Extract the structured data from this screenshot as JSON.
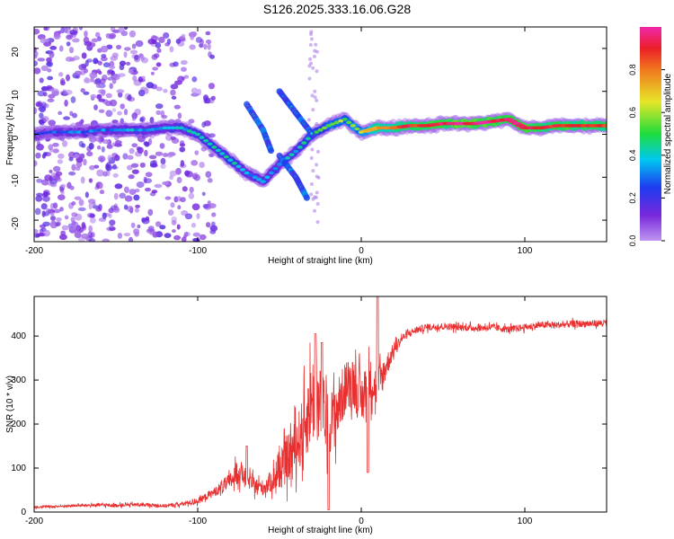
{
  "title": "S126.2025.333.16.06.G28",
  "chart_data": [
    {
      "type": "heatmap",
      "xlabel": "Height of straight line (km)",
      "ylabel": "Frequency (Hz)",
      "xlim": [
        -200,
        150
      ],
      "ylim": [
        -25,
        25
      ],
      "x_ticks": [
        -200,
        -100,
        0,
        100
      ],
      "y_ticks": [
        -20,
        -10,
        0,
        10,
        20
      ],
      "colorbar": {
        "label": "Normalized spectral amplitude",
        "range": [
          0,
          1
        ],
        "ticks": [
          0.0,
          0.2,
          0.4,
          0.6,
          0.8
        ],
        "colormap": "rainbow (violet-blue-cyan-green-yellow-red-magenta)"
      },
      "ridge": [
        {
          "x": -200,
          "f": 0,
          "amp": 0.22
        },
        {
          "x": -190,
          "f": 0.5,
          "amp": 0.25
        },
        {
          "x": -180,
          "f": 0.5,
          "amp": 0.28
        },
        {
          "x": -170,
          "f": 0.5,
          "amp": 0.3
        },
        {
          "x": -160,
          "f": 1,
          "amp": 0.3
        },
        {
          "x": -150,
          "f": 1,
          "amp": 0.32
        },
        {
          "x": -140,
          "f": 1,
          "amp": 0.34
        },
        {
          "x": -130,
          "f": 1,
          "amp": 0.35
        },
        {
          "x": -120,
          "f": 1.5,
          "amp": 0.36
        },
        {
          "x": -110,
          "f": 1.5,
          "amp": 0.38
        },
        {
          "x": -100,
          "f": 0,
          "amp": 0.42
        },
        {
          "x": -90,
          "f": -3,
          "amp": 0.42
        },
        {
          "x": -80,
          "f": -6,
          "amp": 0.42
        },
        {
          "x": -70,
          "f": -9,
          "amp": 0.38
        },
        {
          "x": -60,
          "f": -11,
          "amp": 0.34
        },
        {
          "x": -50,
          "f": -7,
          "amp": 0.36
        },
        {
          "x": -40,
          "f": -4,
          "amp": 0.42
        },
        {
          "x": -30,
          "f": 0,
          "amp": 0.48
        },
        {
          "x": -20,
          "f": 2,
          "amp": 0.55
        },
        {
          "x": -10,
          "f": 3.5,
          "amp": 0.6
        },
        {
          "x": 0,
          "f": 0.5,
          "amp": 0.62
        },
        {
          "x": 10,
          "f": 1.5,
          "amp": 0.8
        },
        {
          "x": 20,
          "f": 1.5,
          "amp": 0.82
        },
        {
          "x": 30,
          "f": 2,
          "amp": 0.88
        },
        {
          "x": 40,
          "f": 2,
          "amp": 0.9
        },
        {
          "x": 50,
          "f": 2.5,
          "amp": 0.93
        },
        {
          "x": 60,
          "f": 2.5,
          "amp": 0.98
        },
        {
          "x": 70,
          "f": 2.5,
          "amp": 0.95
        },
        {
          "x": 80,
          "f": 3,
          "amp": 0.95
        },
        {
          "x": 90,
          "f": 3.5,
          "amp": 0.92
        },
        {
          "x": 100,
          "f": 1.5,
          "amp": 0.95
        },
        {
          "x": 110,
          "f": 1.5,
          "amp": 0.88
        },
        {
          "x": 120,
          "f": 2,
          "amp": 0.9
        },
        {
          "x": 130,
          "f": 2,
          "amp": 0.88
        },
        {
          "x": 140,
          "f": 2,
          "amp": 0.9
        },
        {
          "x": 150,
          "f": 2,
          "amp": 0.9
        }
      ],
      "branches": [
        [
          {
            "x": -70,
            "f": 7
          },
          {
            "x": -60,
            "f": 1
          },
          {
            "x": -55,
            "f": -4
          }
        ],
        [
          {
            "x": -50,
            "f": 10
          },
          {
            "x": -40,
            "f": 5
          },
          {
            "x": -30,
            "f": 0
          }
        ],
        [
          {
            "x": -50,
            "f": -5
          },
          {
            "x": -40,
            "f": -10
          },
          {
            "x": -33,
            "f": -15
          }
        ]
      ],
      "noise_region": {
        "x": [
          -200,
          -100
        ],
        "f": [
          -25,
          25
        ]
      }
    },
    {
      "type": "line",
      "xlabel": "Height of straight line (km)",
      "ylabel": "SNR (10 * v/v)",
      "xlim": [
        -200,
        150
      ],
      "ylim": [
        0,
        490
      ],
      "x_ticks": [
        -200,
        -100,
        0,
        100
      ],
      "y_ticks": [
        0,
        100,
        200,
        300,
        400
      ],
      "color": "#e83030",
      "series": [
        {
          "name": "SNR",
          "x": [
            -200,
            -190,
            -180,
            -170,
            -160,
            -150,
            -140,
            -130,
            -120,
            -110,
            -100,
            -90,
            -80,
            -75,
            -70,
            -65,
            -60,
            -55,
            -50,
            -45,
            -40,
            -35,
            -30,
            -25,
            -20,
            -15,
            -10,
            -5,
            0,
            5,
            10,
            15,
            20,
            25,
            30,
            35,
            40,
            50,
            60,
            70,
            80,
            90,
            100,
            110,
            120,
            130,
            140,
            150
          ],
          "y": [
            12,
            12,
            14,
            15,
            16,
            15,
            17,
            16,
            14,
            18,
            25,
            45,
            70,
            95,
            75,
            60,
            55,
            70,
            90,
            120,
            150,
            190,
            260,
            240,
            200,
            230,
            280,
            300,
            250,
            300,
            280,
            330,
            370,
            395,
            408,
            415,
            420,
            422,
            420,
            418,
            420,
            415,
            420,
            425,
            425,
            428,
            428,
            430
          ],
          "noise": [
            3,
            3,
            3,
            3,
            4,
            4,
            4,
            4,
            4,
            5,
            7,
            10,
            20,
            30,
            20,
            18,
            18,
            25,
            40,
            55,
            60,
            80,
            100,
            90,
            70,
            70,
            60,
            60,
            60,
            50,
            50,
            30,
            15,
            10,
            8,
            8,
            8,
            8,
            8,
            8,
            8,
            8,
            8,
            8,
            8,
            8,
            8,
            8
          ],
          "spikes": [
            {
              "x": -70,
              "y": 150
            },
            {
              "x": -28,
              "y": 405
            },
            {
              "x": -24,
              "y": 385
            },
            {
              "x": -20,
              "y": 5
            },
            {
              "x": 4,
              "y": 90
            },
            {
              "x": 10,
              "y": 490
            }
          ]
        }
      ]
    }
  ]
}
